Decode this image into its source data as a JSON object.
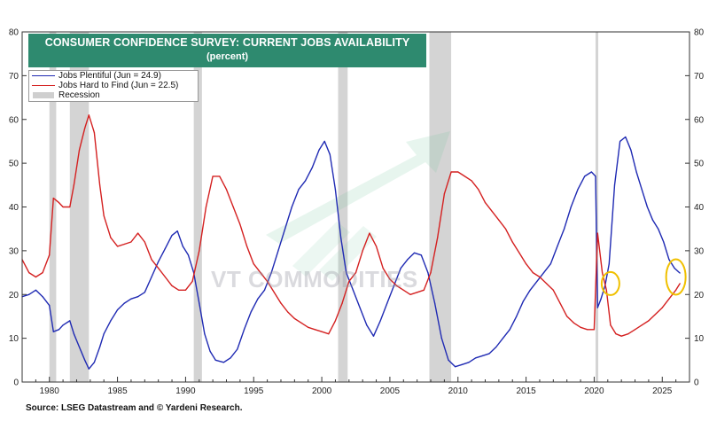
{
  "chart_data": {
    "type": "line",
    "title": "CONSUMER CONFIDENCE SURVEY: CURRENT JOBS AVAILABILITY",
    "subtitle": "(percent)",
    "xlim": [
      1978,
      2027
    ],
    "ylim": [
      0,
      80
    ],
    "yticks": [
      0,
      10,
      20,
      30,
      40,
      50,
      60,
      70,
      80
    ],
    "xticks": [
      1980,
      1985,
      1990,
      1995,
      2000,
      2005,
      2010,
      2015,
      2020,
      2025
    ],
    "grid": false,
    "legend_position": "top-left",
    "recessions": [
      [
        1980.0,
        1980.5
      ],
      [
        1981.5,
        1982.9
      ],
      [
        1990.6,
        1991.2
      ],
      [
        2001.2,
        2001.9
      ],
      [
        2007.9,
        2009.5
      ],
      [
        2020.1,
        2020.3
      ]
    ],
    "series": [
      {
        "name": "Jobs Plentiful (Jun = 24.9)",
        "color": "#1f2ab3",
        "points": [
          [
            1978.0,
            19.5
          ],
          [
            1978.5,
            20
          ],
          [
            1979.0,
            21
          ],
          [
            1979.5,
            19.5
          ],
          [
            1980.0,
            17.5
          ],
          [
            1980.3,
            11.5
          ],
          [
            1980.7,
            12
          ],
          [
            1981.0,
            13
          ],
          [
            1981.5,
            14
          ],
          [
            1981.8,
            11
          ],
          [
            1982.2,
            8
          ],
          [
            1982.6,
            5
          ],
          [
            1982.9,
            3
          ],
          [
            1983.3,
            4.5
          ],
          [
            1983.7,
            8
          ],
          [
            1984.0,
            11
          ],
          [
            1984.5,
            14
          ],
          [
            1985.0,
            16.5
          ],
          [
            1985.5,
            18
          ],
          [
            1986.0,
            19
          ],
          [
            1986.5,
            19.5
          ],
          [
            1987.0,
            20.5
          ],
          [
            1987.5,
            24
          ],
          [
            1988.0,
            27.5
          ],
          [
            1988.5,
            30.5
          ],
          [
            1989.0,
            33.5
          ],
          [
            1989.4,
            34.5
          ],
          [
            1989.8,
            31
          ],
          [
            1990.2,
            29
          ],
          [
            1990.6,
            25
          ],
          [
            1991.0,
            18
          ],
          [
            1991.4,
            11
          ],
          [
            1991.8,
            7
          ],
          [
            1992.2,
            5
          ],
          [
            1992.8,
            4.5
          ],
          [
            1993.3,
            5.5
          ],
          [
            1993.8,
            7.5
          ],
          [
            1994.3,
            12
          ],
          [
            1994.8,
            16
          ],
          [
            1995.3,
            19
          ],
          [
            1995.8,
            21
          ],
          [
            1996.3,
            25
          ],
          [
            1996.8,
            30
          ],
          [
            1997.3,
            35
          ],
          [
            1997.8,
            40
          ],
          [
            1998.3,
            44
          ],
          [
            1998.8,
            46
          ],
          [
            1999.3,
            49
          ],
          [
            1999.8,
            53
          ],
          [
            2000.2,
            55
          ],
          [
            2000.6,
            52
          ],
          [
            2001.0,
            44
          ],
          [
            2001.4,
            33
          ],
          [
            2001.8,
            25
          ],
          [
            2002.3,
            21
          ],
          [
            2002.8,
            17
          ],
          [
            2003.3,
            13
          ],
          [
            2003.8,
            10.5
          ],
          [
            2004.3,
            14
          ],
          [
            2004.8,
            18
          ],
          [
            2005.3,
            22
          ],
          [
            2005.8,
            26
          ],
          [
            2006.3,
            28
          ],
          [
            2006.8,
            29.5
          ],
          [
            2007.3,
            29
          ],
          [
            2007.8,
            25
          ],
          [
            2008.3,
            18
          ],
          [
            2008.8,
            10
          ],
          [
            2009.3,
            5
          ],
          [
            2009.8,
            3.5
          ],
          [
            2010.3,
            4
          ],
          [
            2010.8,
            4.5
          ],
          [
            2011.3,
            5.5
          ],
          [
            2011.8,
            6
          ],
          [
            2012.3,
            6.5
          ],
          [
            2012.8,
            8
          ],
          [
            2013.3,
            10
          ],
          [
            2013.8,
            12
          ],
          [
            2014.3,
            15
          ],
          [
            2014.8,
            18.5
          ],
          [
            2015.3,
            21
          ],
          [
            2015.8,
            23
          ],
          [
            2016.3,
            25
          ],
          [
            2016.8,
            27
          ],
          [
            2017.3,
            31
          ],
          [
            2017.8,
            35
          ],
          [
            2018.3,
            40
          ],
          [
            2018.8,
            44
          ],
          [
            2019.3,
            47
          ],
          [
            2019.8,
            48
          ],
          [
            2020.1,
            47
          ],
          [
            2020.25,
            17
          ],
          [
            2020.5,
            19
          ],
          [
            2020.8,
            22
          ],
          [
            2021.1,
            27
          ],
          [
            2021.5,
            45
          ],
          [
            2021.9,
            55
          ],
          [
            2022.3,
            56
          ],
          [
            2022.7,
            53
          ],
          [
            2023.1,
            48
          ],
          [
            2023.5,
            44
          ],
          [
            2023.9,
            40
          ],
          [
            2024.3,
            37
          ],
          [
            2024.7,
            35
          ],
          [
            2025.1,
            32
          ],
          [
            2025.5,
            28
          ],
          [
            2025.9,
            26
          ],
          [
            2026.3,
            24.9
          ]
        ]
      },
      {
        "name": "Jobs Hard to Find (Jun = 22.5)",
        "color": "#d42020",
        "points": [
          [
            1978.0,
            28
          ],
          [
            1978.5,
            25
          ],
          [
            1979.0,
            24
          ],
          [
            1979.5,
            25
          ],
          [
            1980.0,
            29
          ],
          [
            1980.3,
            42
          ],
          [
            1980.7,
            41
          ],
          [
            1981.0,
            40
          ],
          [
            1981.5,
            40
          ],
          [
            1981.8,
            45
          ],
          [
            1982.2,
            53
          ],
          [
            1982.6,
            58
          ],
          [
            1982.9,
            61
          ],
          [
            1983.3,
            57
          ],
          [
            1983.7,
            45
          ],
          [
            1984.0,
            38
          ],
          [
            1984.5,
            33
          ],
          [
            1985.0,
            31
          ],
          [
            1985.5,
            31.5
          ],
          [
            1986.0,
            32
          ],
          [
            1986.5,
            34
          ],
          [
            1987.0,
            32
          ],
          [
            1987.5,
            28
          ],
          [
            1988.0,
            26
          ],
          [
            1988.5,
            24
          ],
          [
            1989.0,
            22
          ],
          [
            1989.5,
            21
          ],
          [
            1990.0,
            21
          ],
          [
            1990.5,
            23
          ],
          [
            1991.0,
            30
          ],
          [
            1991.5,
            40
          ],
          [
            1992.0,
            47
          ],
          [
            1992.5,
            47
          ],
          [
            1993.0,
            44
          ],
          [
            1993.5,
            40
          ],
          [
            1994.0,
            36
          ],
          [
            1994.5,
            31
          ],
          [
            1995.0,
            27
          ],
          [
            1995.5,
            25
          ],
          [
            1996.0,
            23
          ],
          [
            1996.5,
            20.5
          ],
          [
            1997.0,
            18
          ],
          [
            1997.5,
            16
          ],
          [
            1998.0,
            14.5
          ],
          [
            1998.5,
            13.5
          ],
          [
            1999.0,
            12.5
          ],
          [
            1999.5,
            12
          ],
          [
            2000.0,
            11.5
          ],
          [
            2000.5,
            11
          ],
          [
            2001.0,
            14
          ],
          [
            2001.5,
            18
          ],
          [
            2002.0,
            23
          ],
          [
            2002.5,
            25
          ],
          [
            2003.0,
            30
          ],
          [
            2003.5,
            34
          ],
          [
            2004.0,
            31
          ],
          [
            2004.5,
            26
          ],
          [
            2005.0,
            23.5
          ],
          [
            2005.5,
            22
          ],
          [
            2006.0,
            21
          ],
          [
            2006.5,
            20
          ],
          [
            2007.0,
            20.5
          ],
          [
            2007.5,
            21
          ],
          [
            2008.0,
            25
          ],
          [
            2008.5,
            33
          ],
          [
            2009.0,
            43
          ],
          [
            2009.5,
            48
          ],
          [
            2010.0,
            48
          ],
          [
            2010.5,
            47
          ],
          [
            2011.0,
            46
          ],
          [
            2011.5,
            44
          ],
          [
            2012.0,
            41
          ],
          [
            2012.5,
            39
          ],
          [
            2013.0,
            37
          ],
          [
            2013.5,
            35
          ],
          [
            2014.0,
            32
          ],
          [
            2014.5,
            29.5
          ],
          [
            2015.0,
            27
          ],
          [
            2015.5,
            25
          ],
          [
            2016.0,
            24
          ],
          [
            2016.5,
            22.5
          ],
          [
            2017.0,
            21
          ],
          [
            2017.5,
            18
          ],
          [
            2018.0,
            15
          ],
          [
            2018.5,
            13.5
          ],
          [
            2019.0,
            12.5
          ],
          [
            2019.5,
            12
          ],
          [
            2020.0,
            12
          ],
          [
            2020.25,
            34
          ],
          [
            2020.6,
            25
          ],
          [
            2020.9,
            21
          ],
          [
            2021.2,
            13
          ],
          [
            2021.6,
            11
          ],
          [
            2022.0,
            10.5
          ],
          [
            2022.5,
            11
          ],
          [
            2023.0,
            12
          ],
          [
            2023.5,
            13
          ],
          [
            2024.0,
            14
          ],
          [
            2024.5,
            15.5
          ],
          [
            2025.0,
            17
          ],
          [
            2025.5,
            19
          ],
          [
            2026.0,
            21
          ],
          [
            2026.3,
            22.5
          ]
        ]
      }
    ],
    "legend_recession_label": "Recession",
    "highlights": [
      {
        "x": 2021.2,
        "y": 22.5
      },
      {
        "x": 2026.0,
        "y": 24.0
      }
    ]
  },
  "watermark": "VT COMMODITIES",
  "source": "Source: LSEG Datastream and © Yardeni Research."
}
